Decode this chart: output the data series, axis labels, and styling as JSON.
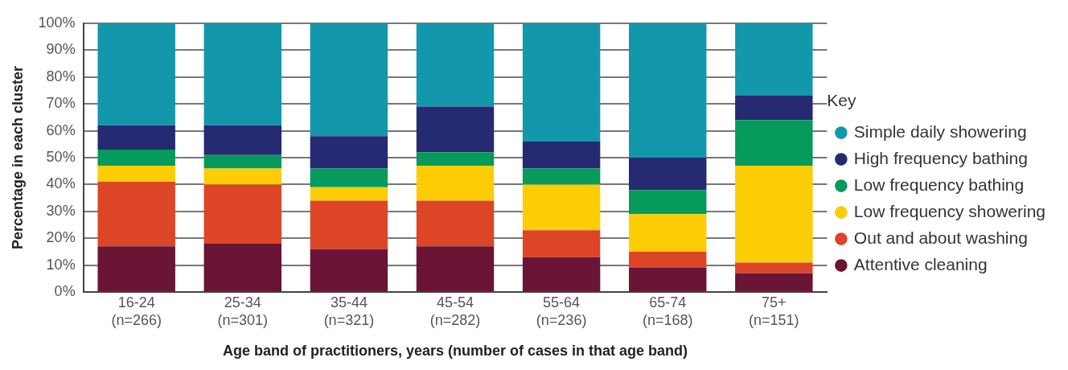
{
  "chart_data": {
    "type": "bar",
    "stacked": true,
    "xlabel": "Age band of practitioners, years (number of cases in that age band)",
    "ylabel": "Percentage in each cluster",
    "legend_title": "Key",
    "legend": "right",
    "grid": "y",
    "categories": [
      "16-24\n(n=266)",
      "25-34\n(n=301)",
      "35-44\n(n=321)",
      "45-54\n(n=282)",
      "55-64\n(n=236)",
      "65-74\n(n=168)",
      "75+\n(n=151)"
    ],
    "ylim": [
      0,
      100
    ],
    "yticks": [
      {
        "value": 0,
        "label": "0%"
      },
      {
        "value": 10,
        "label": "10%"
      },
      {
        "value": 20,
        "label": "20%"
      },
      {
        "value": 30,
        "label": "30%"
      },
      {
        "value": 40,
        "label": "40%"
      },
      {
        "value": 50,
        "label": "50%"
      },
      {
        "value": 60,
        "label": "60%"
      },
      {
        "value": 70,
        "label": "70%"
      },
      {
        "value": 80,
        "label": "80%"
      },
      {
        "value": 90,
        "label": "90%"
      },
      {
        "value": 100,
        "label": "100%"
      }
    ],
    "series": [
      {
        "name": "Attentive cleaning",
        "color": "#6a1436",
        "values": [
          17,
          18,
          16,
          17,
          13,
          9,
          7
        ]
      },
      {
        "name": "Out and about washing",
        "color": "#dc4627",
        "values": [
          24,
          22,
          18,
          17,
          10,
          6,
          4
        ]
      },
      {
        "name": "Low frequency showering",
        "color": "#fccd05",
        "values": [
          6,
          6,
          5,
          13,
          17,
          14,
          36
        ]
      },
      {
        "name": "Low frequency bathing",
        "color": "#069a5c",
        "values": [
          6,
          5,
          7,
          5,
          6,
          9,
          17
        ]
      },
      {
        "name": "High frequency bathing",
        "color": "#262a72",
        "values": [
          9,
          11,
          12,
          17,
          10,
          12,
          9
        ]
      },
      {
        "name": "Simple daily showering",
        "color": "#1297ab",
        "values": [
          38,
          38,
          42,
          31,
          44,
          50,
          27
        ]
      }
    ]
  }
}
